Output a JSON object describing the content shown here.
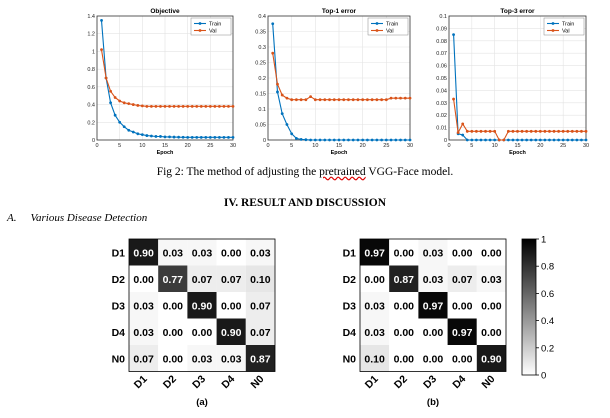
{
  "training_plots": {
    "legend": [
      "Train",
      "Val"
    ],
    "series_colors": {
      "train": "#0072bd",
      "val": "#d95319"
    },
    "xlabel": "Epoch"
  },
  "chart_data": [
    {
      "type": "line",
      "title": "Objective",
      "xlabel": "Epoch",
      "xlim": [
        0,
        30
      ],
      "ylim": [
        0,
        1.4
      ],
      "xticks": [
        "0",
        "5",
        "10",
        "15",
        "20",
        "25",
        "30"
      ],
      "yticks": [
        "0",
        "0.2",
        "0.4",
        "0.6",
        "0.8",
        "1",
        "1.2",
        "1.4"
      ],
      "x": [
        1,
        2,
        3,
        4,
        5,
        6,
        7,
        8,
        9,
        10,
        11,
        12,
        13,
        14,
        15,
        16,
        17,
        18,
        19,
        20,
        21,
        22,
        23,
        24,
        25,
        26,
        27,
        28,
        29,
        30
      ],
      "series": [
        {
          "name": "Train",
          "values": [
            1.35,
            0.7,
            0.42,
            0.28,
            0.2,
            0.15,
            0.11,
            0.09,
            0.07,
            0.06,
            0.05,
            0.045,
            0.04,
            0.04,
            0.035,
            0.035,
            0.033,
            0.032,
            0.031,
            0.03,
            0.03,
            0.03,
            0.03,
            0.03,
            0.03,
            0.03,
            0.03,
            0.03,
            0.03,
            0.03
          ]
        },
        {
          "name": "Val",
          "values": [
            1.02,
            0.7,
            0.55,
            0.48,
            0.44,
            0.42,
            0.41,
            0.4,
            0.39,
            0.385,
            0.38,
            0.38,
            0.38,
            0.38,
            0.38,
            0.38,
            0.38,
            0.38,
            0.38,
            0.38,
            0.38,
            0.38,
            0.38,
            0.38,
            0.38,
            0.38,
            0.38,
            0.38,
            0.38,
            0.38
          ]
        }
      ]
    },
    {
      "type": "line",
      "title": "Top-1 error",
      "xlabel": "Epoch",
      "xlim": [
        0,
        30
      ],
      "ylim": [
        0,
        0.4
      ],
      "xticks": [
        "0",
        "5",
        "10",
        "15",
        "20",
        "25",
        "30"
      ],
      "yticks": [
        "0",
        "0.05",
        "0.1",
        "0.15",
        "0.2",
        "0.25",
        "0.3",
        "0.35",
        "0.4"
      ],
      "x": [
        1,
        2,
        3,
        4,
        5,
        6,
        7,
        8,
        9,
        10,
        11,
        12,
        13,
        14,
        15,
        16,
        17,
        18,
        19,
        20,
        21,
        22,
        23,
        24,
        25,
        26,
        27,
        28,
        29,
        30
      ],
      "series": [
        {
          "name": "Train",
          "values": [
            0.375,
            0.155,
            0.085,
            0.05,
            0.02,
            0.005,
            0.002,
            0.001,
            0.0,
            0.0,
            0.0,
            0.0,
            0.0,
            0.0,
            0.0,
            0.0,
            0.0,
            0.0,
            0.0,
            0.0,
            0.0,
            0.0,
            0.0,
            0.0,
            0.0,
            0.0,
            0.0,
            0.0,
            0.0,
            0.0
          ]
        },
        {
          "name": "Val",
          "values": [
            0.28,
            0.18,
            0.145,
            0.135,
            0.13,
            0.13,
            0.13,
            0.13,
            0.14,
            0.13,
            0.13,
            0.13,
            0.13,
            0.13,
            0.13,
            0.13,
            0.13,
            0.13,
            0.13,
            0.13,
            0.13,
            0.13,
            0.13,
            0.13,
            0.13,
            0.135,
            0.135,
            0.135,
            0.135,
            0.135
          ]
        }
      ]
    },
    {
      "type": "line",
      "title": "Top-3 error",
      "xlabel": "Epoch",
      "xlim": [
        0,
        30
      ],
      "ylim": [
        0,
        0.1
      ],
      "xticks": [
        "0",
        "5",
        "10",
        "15",
        "20",
        "25",
        "30"
      ],
      "yticks": [
        "0",
        "0.01",
        "0.02",
        "0.03",
        "0.04",
        "0.05",
        "0.06",
        "0.07",
        "0.08",
        "0.09",
        "0.1"
      ],
      "x": [
        1,
        2,
        3,
        4,
        5,
        6,
        7,
        8,
        9,
        10,
        11,
        12,
        13,
        14,
        15,
        16,
        17,
        18,
        19,
        20,
        21,
        22,
        23,
        24,
        25,
        26,
        27,
        28,
        29,
        30
      ],
      "series": [
        {
          "name": "Train",
          "values": [
            0.085,
            0.005,
            0.004,
            0.0,
            0.0,
            0.0,
            0.0,
            0.0,
            0.0,
            0.0,
            0.0,
            0.0,
            0.0,
            0.0,
            0.0,
            0.0,
            0.0,
            0.0,
            0.0,
            0.0,
            0.0,
            0.0,
            0.0,
            0.0,
            0.0,
            0.0,
            0.0,
            0.0,
            0.0,
            0.0
          ]
        },
        {
          "name": "Val",
          "values": [
            0.033,
            0.006,
            0.013,
            0.007,
            0.007,
            0.007,
            0.007,
            0.007,
            0.007,
            0.007,
            0.0,
            0.0,
            0.007,
            0.007,
            0.007,
            0.007,
            0.007,
            0.007,
            0.007,
            0.007,
            0.007,
            0.007,
            0.007,
            0.007,
            0.007,
            0.007,
            0.007,
            0.007,
            0.007,
            0.007
          ]
        }
      ]
    },
    {
      "type": "heatmap",
      "caption": "(a)",
      "rows": [
        "D1",
        "D2",
        "D3",
        "D4",
        "N0"
      ],
      "cols": [
        "D1",
        "D2",
        "D3",
        "D4",
        "N0"
      ],
      "values": [
        [
          0.9,
          0.03,
          0.03,
          0.0,
          0.03
        ],
        [
          0.0,
          0.77,
          0.07,
          0.07,
          0.1
        ],
        [
          0.03,
          0.0,
          0.9,
          0.0,
          0.07
        ],
        [
          0.03,
          0.0,
          0.0,
          0.9,
          0.07
        ],
        [
          0.07,
          0.0,
          0.03,
          0.03,
          0.87
        ]
      ]
    },
    {
      "type": "heatmap",
      "caption": "(b)",
      "rows": [
        "D1",
        "D2",
        "D3",
        "D4",
        "N0"
      ],
      "cols": [
        "D1",
        "D2",
        "D3",
        "D4",
        "N0"
      ],
      "values": [
        [
          0.97,
          0.0,
          0.03,
          0.0,
          0.0
        ],
        [
          0.0,
          0.87,
          0.03,
          0.07,
          0.03
        ],
        [
          0.03,
          0.0,
          0.97,
          0.0,
          0.0
        ],
        [
          0.03,
          0.0,
          0.0,
          0.97,
          0.0
        ],
        [
          0.1,
          0.0,
          0.0,
          0.0,
          0.9
        ]
      ],
      "colorbar": {
        "range": [
          0,
          1
        ],
        "ticks": [
          "0",
          "0.2",
          "0.4",
          "0.6",
          "0.8",
          "1"
        ]
      }
    }
  ],
  "caption": {
    "prefix": "Fig 2: The method of adjusting the ",
    "flagged": "pretrained",
    "suffix": " VGG-Face model."
  },
  "section_heading": "IV. RESULT AND DISCUSSION",
  "subsection": {
    "number": "A.",
    "title": "Various Disease Detection"
  }
}
